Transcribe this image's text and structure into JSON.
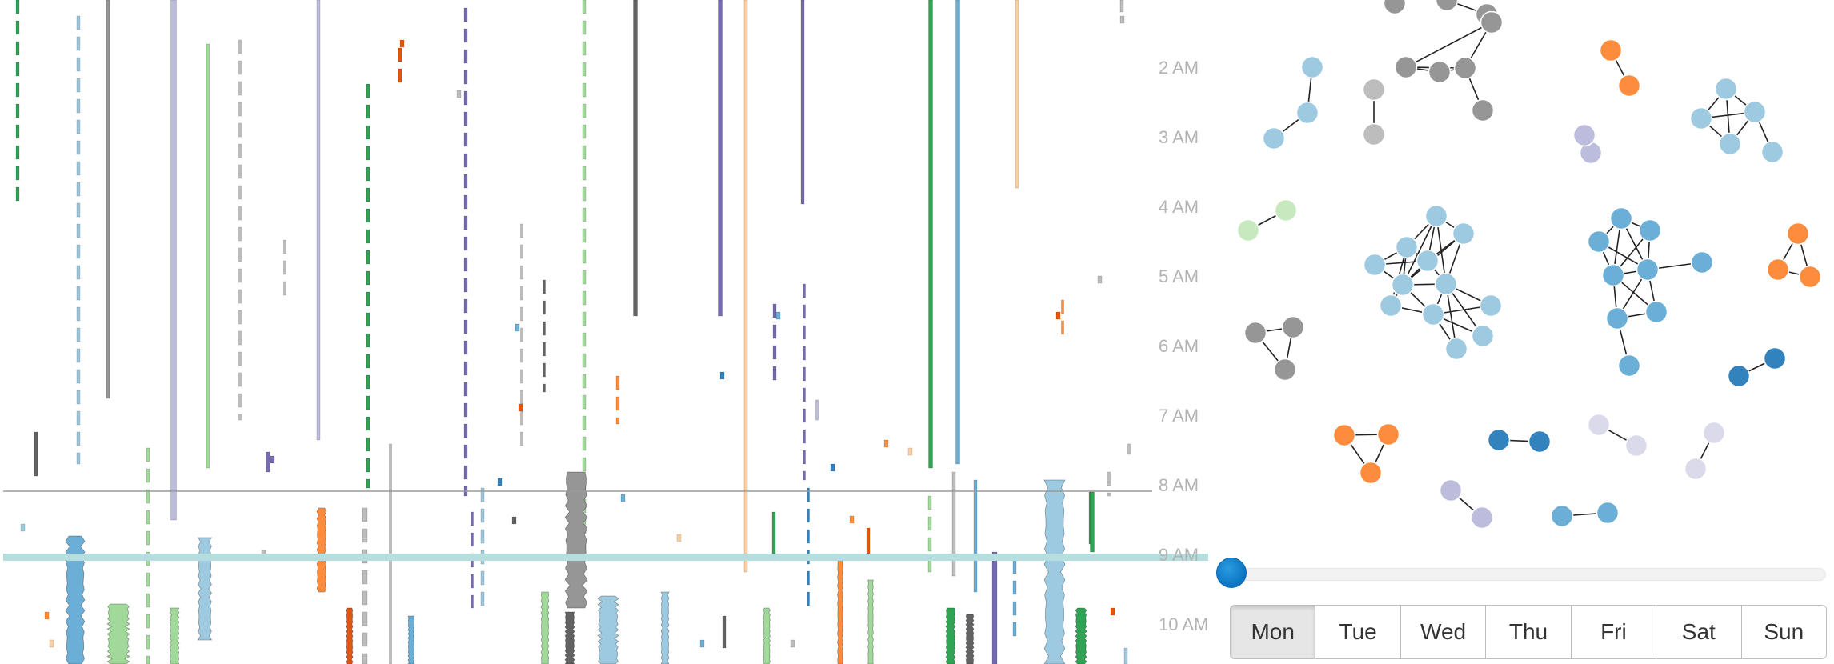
{
  "chart_data": [
    {
      "type": "timeline",
      "time_axis": [
        "2 AM",
        "3 AM",
        "4 AM",
        "5 AM",
        "6 AM",
        "7 AM",
        "8 AM",
        "9 AM",
        "10 AM"
      ],
      "title": "",
      "xlabel": "",
      "ylabel": ""
    },
    {
      "type": "network",
      "title": ""
    }
  ],
  "slider": {
    "value": 0
  },
  "days": [
    "Mon",
    "Tue",
    "Wed",
    "Thu",
    "Fri",
    "Sat",
    "Sun"
  ],
  "selected_day": "Mon",
  "colors": {
    "light_blue": "#9ecae1",
    "mid_blue": "#6baed6",
    "dark_blue": "#3182bd",
    "purple": "#756bb1",
    "light_purple": "#bcbddc",
    "lavender": "#dadaeb",
    "dark_green": "#31a354",
    "light_green": "#a1d99b",
    "pale_green": "#c7e9c0",
    "orange": "#fd8d3c",
    "dark_orange": "#e6550d",
    "tan": "#fdd0a2",
    "dark_gray": "#636363",
    "gray": "#969696",
    "light_gray": "#bdbdbd",
    "teal_band": "#b7dedf"
  }
}
